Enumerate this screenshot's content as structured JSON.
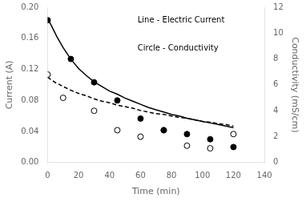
{
  "chart_data": {
    "type": "line",
    "xlabel": "Time (min)",
    "ylabel": "Current (A)",
    "y2label": "Conductivity (mS/cm)",
    "xlim": [
      0,
      140
    ],
    "xticks": [
      0,
      20,
      40,
      60,
      80,
      100,
      120,
      140
    ],
    "ylim": [
      0.0,
      0.2
    ],
    "yticks": [
      {
        "value": 0,
        "label": "0.00"
      },
      0.04,
      0.08,
      0.12,
      0.16,
      {
        "value": 0.2,
        "label": "0.20"
      }
    ],
    "y2lim": [
      0,
      12
    ],
    "y2ticks": [
      0,
      2,
      4,
      6,
      8,
      10,
      12
    ],
    "grid": false,
    "annotations": [
      "Line - Electric Current",
      "Circle - Conductivity"
    ],
    "series": [
      {
        "type": "line",
        "line_style": "solid",
        "color": "#000000",
        "x": [
          0,
          2,
          4,
          6,
          8,
          10,
          15,
          20,
          25,
          30,
          35,
          40,
          45,
          50,
          55,
          60,
          65,
          70,
          75,
          80,
          85,
          90,
          95,
          100,
          105,
          110,
          115,
          120
        ],
        "values": [
          0.185,
          0.178,
          0.17,
          0.162,
          0.155,
          0.148,
          0.133,
          0.121,
          0.112,
          0.104,
          0.098,
          0.092,
          0.088,
          0.083,
          0.079,
          0.075,
          0.071,
          0.068,
          0.065,
          0.062,
          0.06,
          0.057,
          0.055,
          0.053,
          0.051,
          0.049,
          0.047,
          0.045
        ]
      },
      {
        "type": "line",
        "line_style": "dashed",
        "color": "#000000",
        "x": [
          0,
          2,
          5,
          8,
          10,
          15,
          20,
          25,
          30,
          35,
          40,
          45,
          50,
          55,
          60,
          65,
          70,
          75,
          80,
          85,
          90,
          95,
          100,
          105,
          110,
          115,
          120
        ],
        "values": [
          0.11,
          0.107,
          0.103,
          0.1,
          0.098,
          0.093,
          0.089,
          0.086,
          0.082,
          0.079,
          0.077,
          0.074,
          0.072,
          0.07,
          0.067,
          0.065,
          0.063,
          0.062,
          0.06,
          0.058,
          0.057,
          0.055,
          0.053,
          0.052,
          0.05,
          0.049,
          0.047
        ]
      },
      {
        "type": "scatter",
        "marker": "circle",
        "color": "#000000",
        "axis": "y2",
        "x": [
          0,
          15,
          30,
          45,
          60,
          75,
          90,
          105,
          120
        ],
        "values": [
          11.0,
          8.0,
          6.2,
          4.8,
          3.4,
          2.5,
          2.2,
          1.8,
          1.2
        ]
      },
      {
        "type": "scatter",
        "marker": "ring",
        "color": "#000000",
        "axis": "y2",
        "x": [
          0,
          10,
          30,
          45,
          60,
          75,
          90,
          105,
          120
        ],
        "values": [
          6.8,
          5.0,
          4.0,
          2.5,
          2.0,
          2.5,
          1.3,
          1.1,
          2.2
        ]
      }
    ]
  }
}
